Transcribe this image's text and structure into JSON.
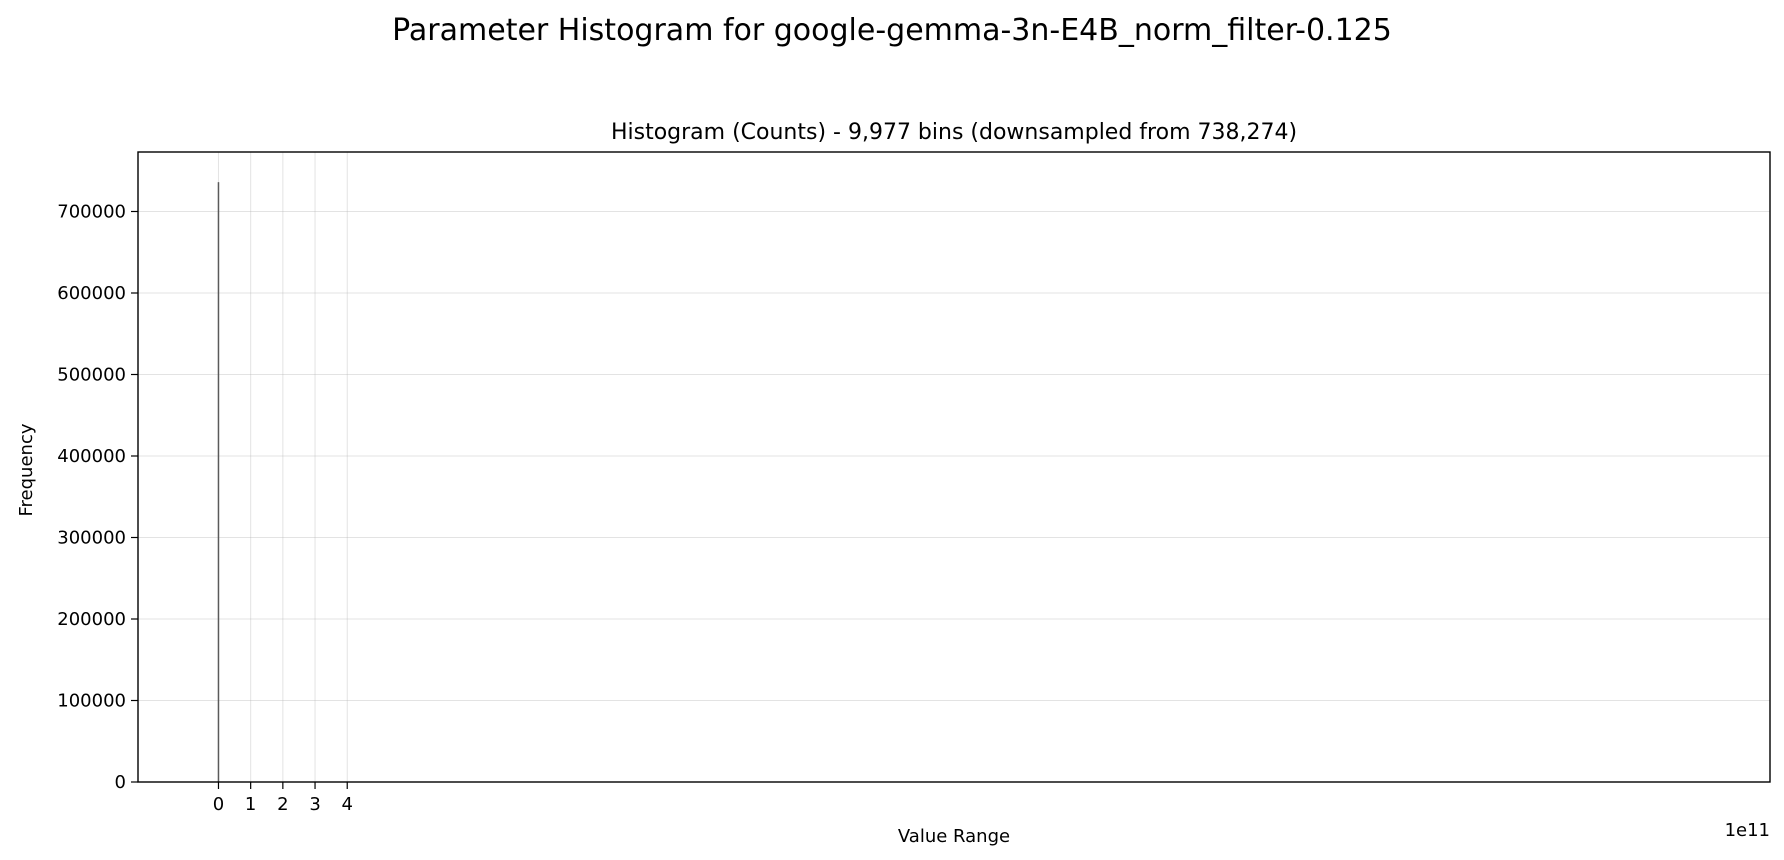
{
  "chart_data": {
    "type": "bar",
    "suptitle": "Parameter Histogram for google-gemma-3n-E4B_norm_filter-0.125",
    "title": "Histogram (Counts) - 9,977 bins (downsampled from 738,274)",
    "xlabel": "Value Range",
    "ylabel": "Frequency",
    "x_offset_label": "1e11",
    "xlim": [
      -2.5,
      48.2
    ],
    "ylim": [
      0,
      773000
    ],
    "x_ticks": [
      0,
      1,
      2,
      3,
      4
    ],
    "x_tick_labels": [
      "0",
      "1",
      "2",
      "3",
      "4"
    ],
    "y_ticks": [
      0,
      100000,
      200000,
      300000,
      400000,
      500000,
      600000,
      700000
    ],
    "y_tick_labels": [
      "0",
      "100000",
      "200000",
      "300000",
      "400000",
      "500000",
      "600000",
      "700000"
    ],
    "grid": true,
    "bars": [
      {
        "x": 0,
        "value": 736000
      }
    ],
    "colors": {
      "bar": "#5a5a5a",
      "grid": "#b0b0b0"
    }
  }
}
